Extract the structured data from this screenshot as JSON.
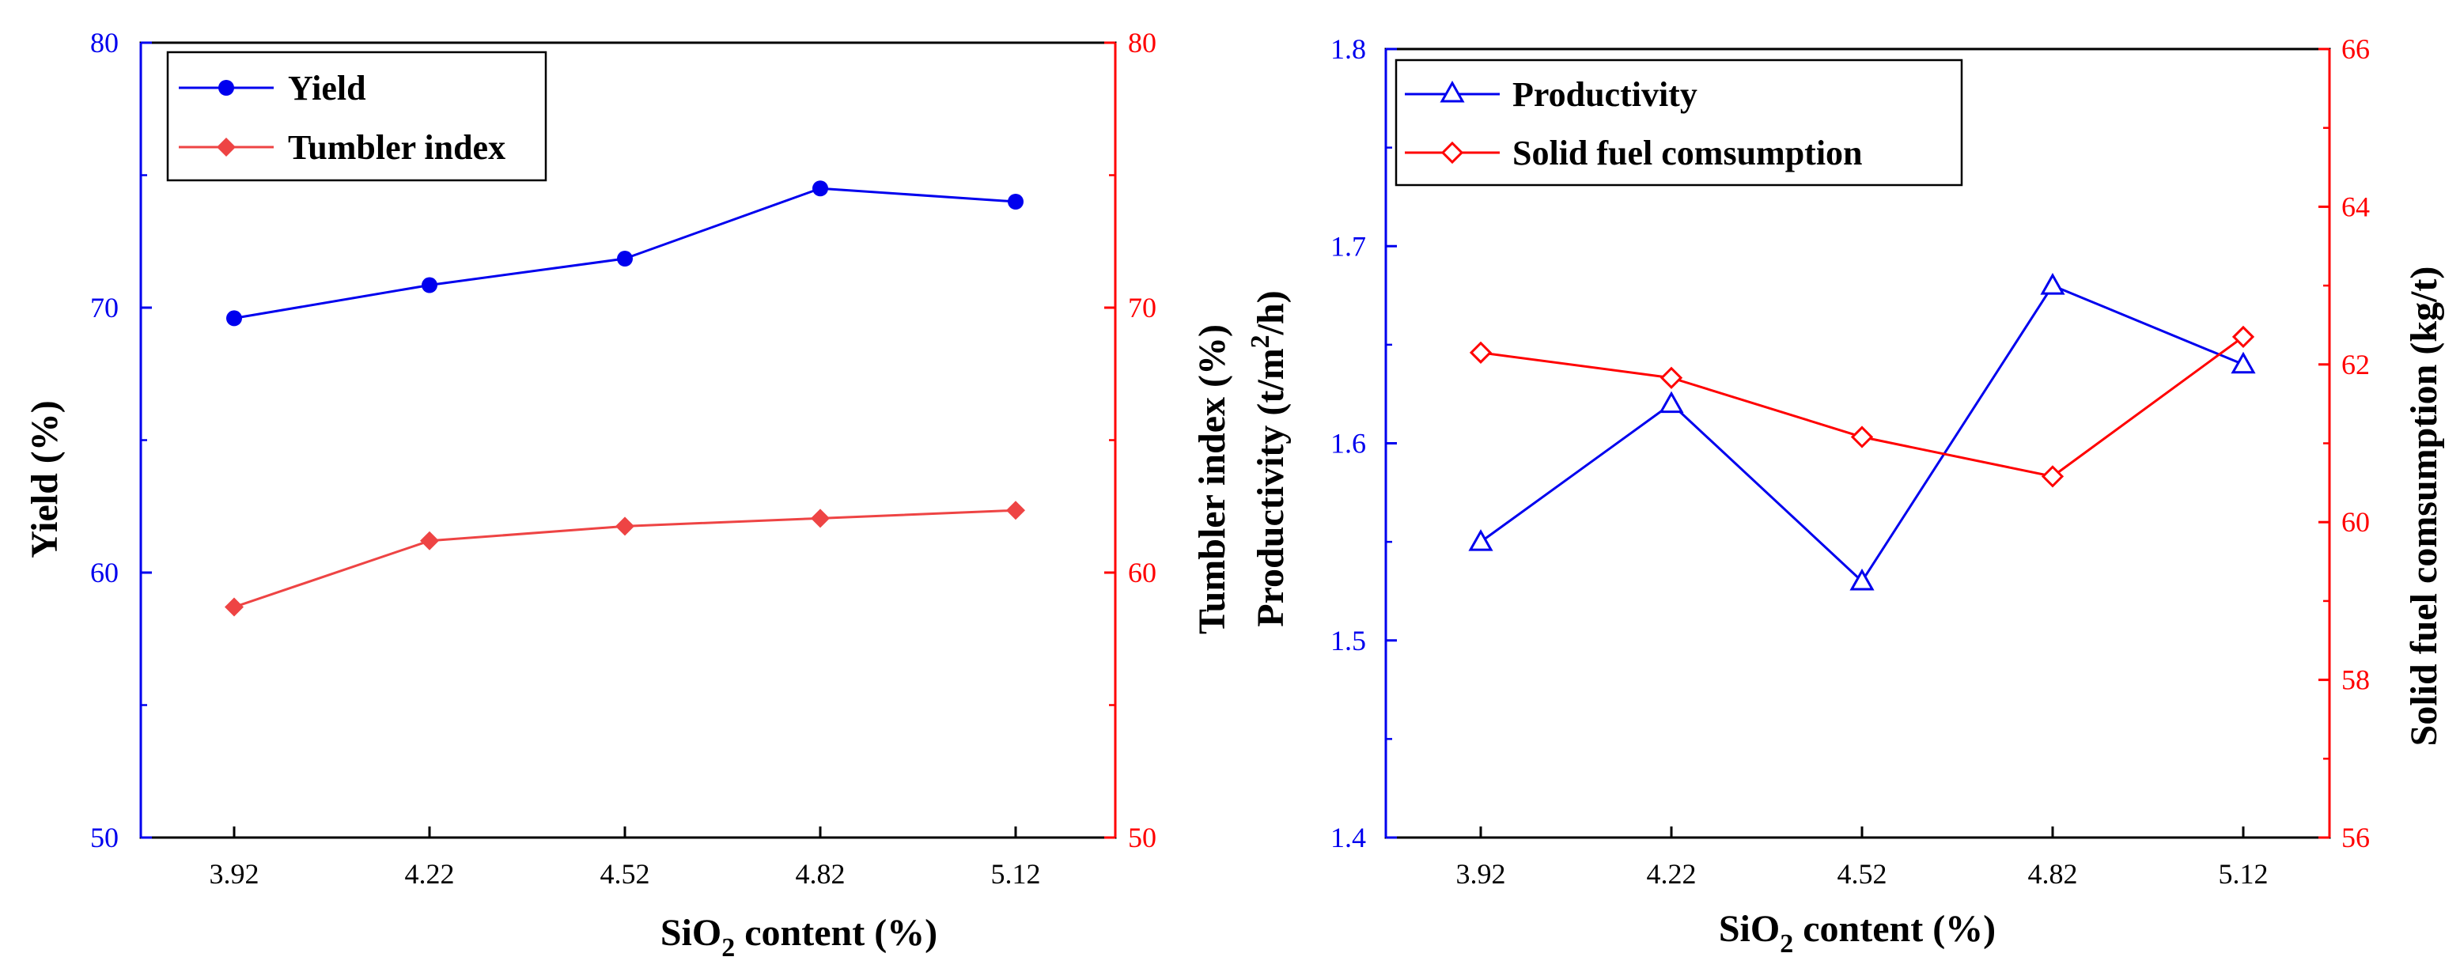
{
  "figure": {
    "panel_count": 2
  },
  "colors": {
    "blue": "#0000ee",
    "red": "#ff0000",
    "red_marker": "#ee4444",
    "axis": "#000000"
  },
  "chart_data": [
    {
      "type": "line",
      "x": [
        "3.92",
        "4.22",
        "4.52",
        "4.82",
        "5.12"
      ],
      "xlabel": {
        "main": "SiO",
        "sub": "2",
        "rest": " content (%)"
      },
      "ylabel_left": "Yield (%)",
      "ylabel_right": "Tumbler index (%)",
      "ylim_left": [
        50,
        80
      ],
      "ylim_right": [
        50,
        80
      ],
      "yticks_left": [
        "50",
        "60",
        "70",
        "80"
      ],
      "yticks_right": [
        "50",
        "60",
        "70",
        "80"
      ],
      "series": [
        {
          "name": "Yield",
          "axis": "left",
          "marker": "circle",
          "color": "#0000ee",
          "values": [
            69.6,
            70.85,
            71.85,
            74.5,
            74.0
          ]
        },
        {
          "name": "Tumbler index",
          "axis": "right",
          "marker": "diamond",
          "color": "#ee4444",
          "values": [
            58.7,
            61.2,
            61.75,
            62.05,
            62.35
          ]
        }
      ],
      "legend": "top-left",
      "grid": false
    },
    {
      "type": "line",
      "x": [
        "3.92",
        "4.22",
        "4.52",
        "4.82",
        "5.12"
      ],
      "xlabel": {
        "main": "SiO",
        "sub": "2",
        "rest": " content (%)"
      },
      "ylabel_left": {
        "main": "Productivity (t/m",
        "sup": "2",
        "rest": "/h)"
      },
      "ylabel_right": "Solid fuel comsumption (kg/t)",
      "ylim_left": [
        1.4,
        1.8
      ],
      "ylim_right": [
        56,
        66
      ],
      "yticks_left": [
        "1.4",
        "1.5",
        "1.6",
        "1.7",
        "1.8"
      ],
      "yticks_right": [
        "56",
        "58",
        "60",
        "62",
        "64",
        "66"
      ],
      "series": [
        {
          "name": "Productivity",
          "axis": "left",
          "marker": "triangle-open",
          "color": "#0000ee",
          "values": [
            1.55,
            1.62,
            1.53,
            1.68,
            1.64
          ]
        },
        {
          "name": "Solid fuel comsumption",
          "axis": "right",
          "marker": "diamond-open",
          "color": "#ff0000",
          "values": [
            62.15,
            61.83,
            61.08,
            60.58,
            62.35
          ]
        }
      ],
      "legend": "top-left",
      "grid": false
    }
  ]
}
